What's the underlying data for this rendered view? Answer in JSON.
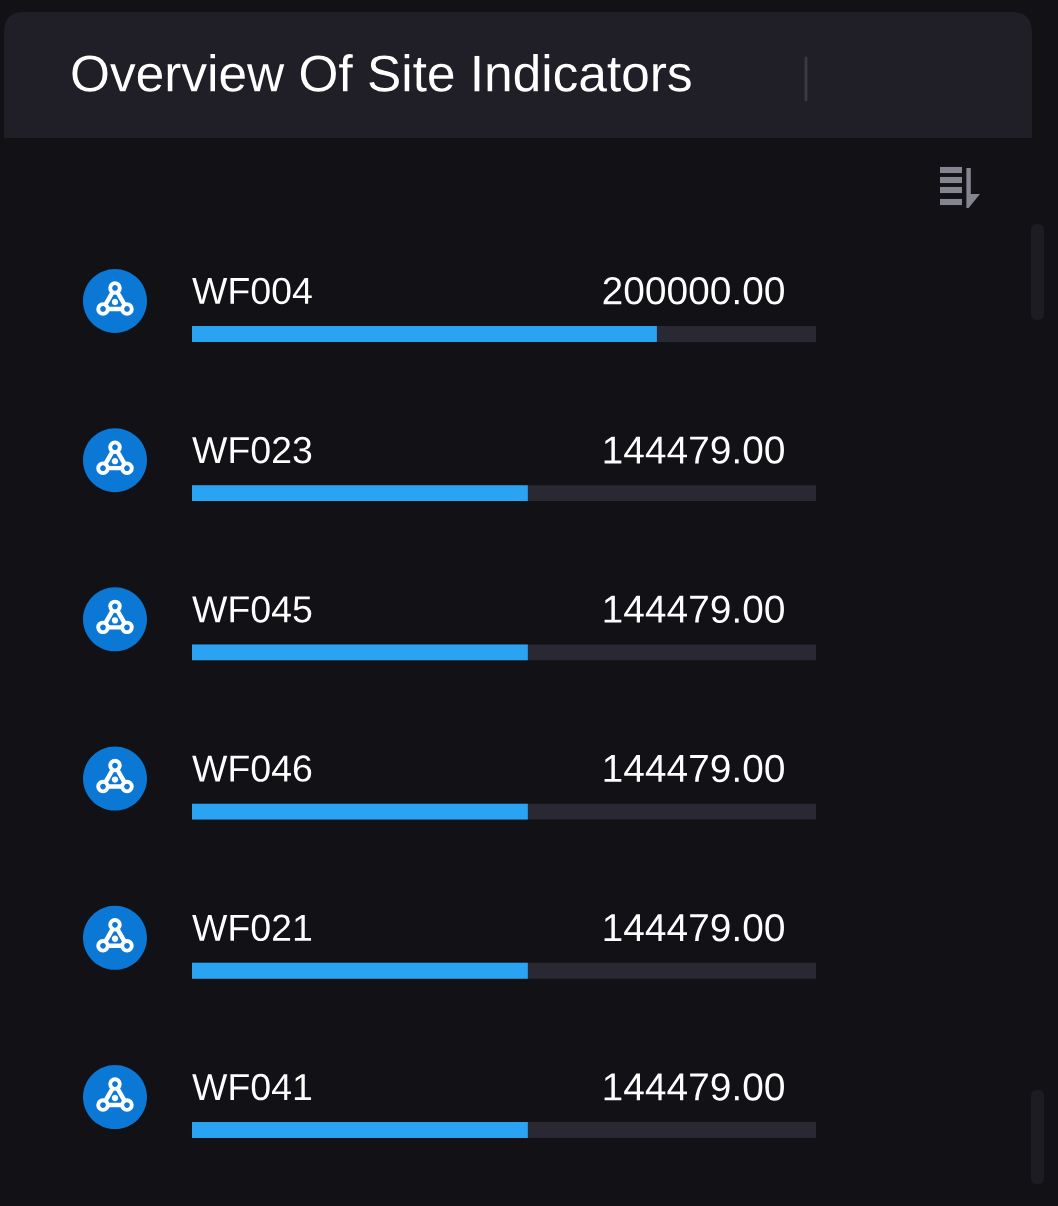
{
  "chart_data": {
    "type": "bar",
    "orientation": "horizontal",
    "title": "Overview Of Site Indicators",
    "categories": [
      "WF004",
      "WF023",
      "WF045",
      "WF046",
      "WF021",
      "WF041"
    ],
    "values": [
      200000,
      144479,
      144479,
      144479,
      144479,
      144479
    ],
    "value_labels": [
      "200000.00",
      "144479.00",
      "144479.00",
      "144479.00",
      "144479.00",
      "144479.00"
    ],
    "color": "#2aa4f2",
    "tick_labels": "y"
  }
}
